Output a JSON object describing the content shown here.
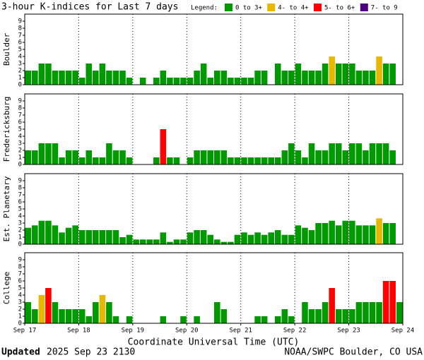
{
  "chart_data": {
    "type": "bar",
    "title": "3-hour K-indices for Last 7 days",
    "legend_title": "Legend:",
    "legend": [
      {
        "label": "0 to 3+",
        "color": "#009900"
      },
      {
        "label": "4- to 4+",
        "color": "#e8b800"
      },
      {
        "label": "5- to 6+",
        "color": "#ff0000"
      },
      {
        "label": "7- to 9",
        "color": "#4b0082"
      }
    ],
    "categories": [
      "Sep 17",
      "Sep 18",
      "Sep 19",
      "Sep 20",
      "Sep 21",
      "Sep 22",
      "Sep 23",
      "Sep 24"
    ],
    "xlabel": "Coordinate Universal Time (UTC)",
    "ylim": [
      0,
      10
    ],
    "yticks": [
      0,
      1,
      2,
      3,
      4,
      5,
      6,
      7,
      8,
      9
    ],
    "grid": true,
    "panels": [
      {
        "ylabel": "Boulder",
        "values": [
          2,
          2,
          3,
          3,
          2,
          2,
          2,
          2,
          1,
          3,
          2,
          3,
          2,
          2,
          2,
          1,
          0,
          1,
          0,
          1,
          2,
          1,
          1,
          1,
          1,
          2,
          3,
          1,
          2,
          2,
          1,
          1,
          1,
          1,
          2,
          2,
          0,
          3,
          2,
          2,
          3,
          2,
          2,
          2,
          3,
          4,
          3,
          3,
          3,
          2,
          2,
          2,
          4,
          3,
          3,
          0
        ]
      },
      {
        "ylabel": "Fredericksburg",
        "values": [
          2,
          2,
          3,
          3,
          3,
          1,
          2,
          2,
          1,
          2,
          1,
          1,
          3,
          2,
          2,
          1,
          0,
          0,
          0,
          1,
          5,
          1,
          1,
          0,
          1,
          2,
          2,
          2,
          2,
          2,
          1,
          1,
          1,
          1,
          1,
          1,
          1,
          1,
          2,
          3,
          2,
          1,
          3,
          2,
          2,
          3,
          3,
          2,
          3,
          3,
          2,
          3,
          3,
          3,
          2,
          0
        ]
      },
      {
        "ylabel": "Est. Planetary",
        "values": [
          2.33,
          2.67,
          3.33,
          3.33,
          2.67,
          1.67,
          2.33,
          2.67,
          2,
          2,
          2,
          2,
          2,
          2,
          1,
          1.33,
          0.67,
          0.67,
          0.67,
          0.67,
          1.67,
          0.33,
          0.67,
          0.67,
          1.67,
          2,
          2,
          1.33,
          0.67,
          0.33,
          0.33,
          1.33,
          1.67,
          1.33,
          1.67,
          1.33,
          1.67,
          2,
          1.33,
          1.33,
          2.67,
          2.33,
          2,
          3,
          3,
          3.33,
          2.67,
          3.33,
          3.33,
          2.67,
          2.67,
          2.67,
          3.67,
          3,
          3,
          null
        ]
      },
      {
        "ylabel": "College",
        "values": [
          3,
          2,
          4,
          5,
          3,
          2,
          2,
          2,
          2,
          1,
          3,
          4,
          3,
          1,
          0,
          1,
          0,
          0,
          0,
          0,
          1,
          0,
          0,
          1,
          0,
          1,
          0,
          0,
          3,
          2,
          0,
          0,
          0,
          0,
          1,
          1,
          0,
          1,
          2,
          1,
          0,
          3,
          2,
          2,
          3,
          5,
          2,
          2,
          2,
          3,
          3,
          3,
          3,
          6,
          6,
          3
        ]
      }
    ],
    "footer_left_bold": "Updated",
    "footer_left": "2025 Sep 23 2130",
    "footer_right": "NOAA/SWPC Boulder, CO USA"
  }
}
